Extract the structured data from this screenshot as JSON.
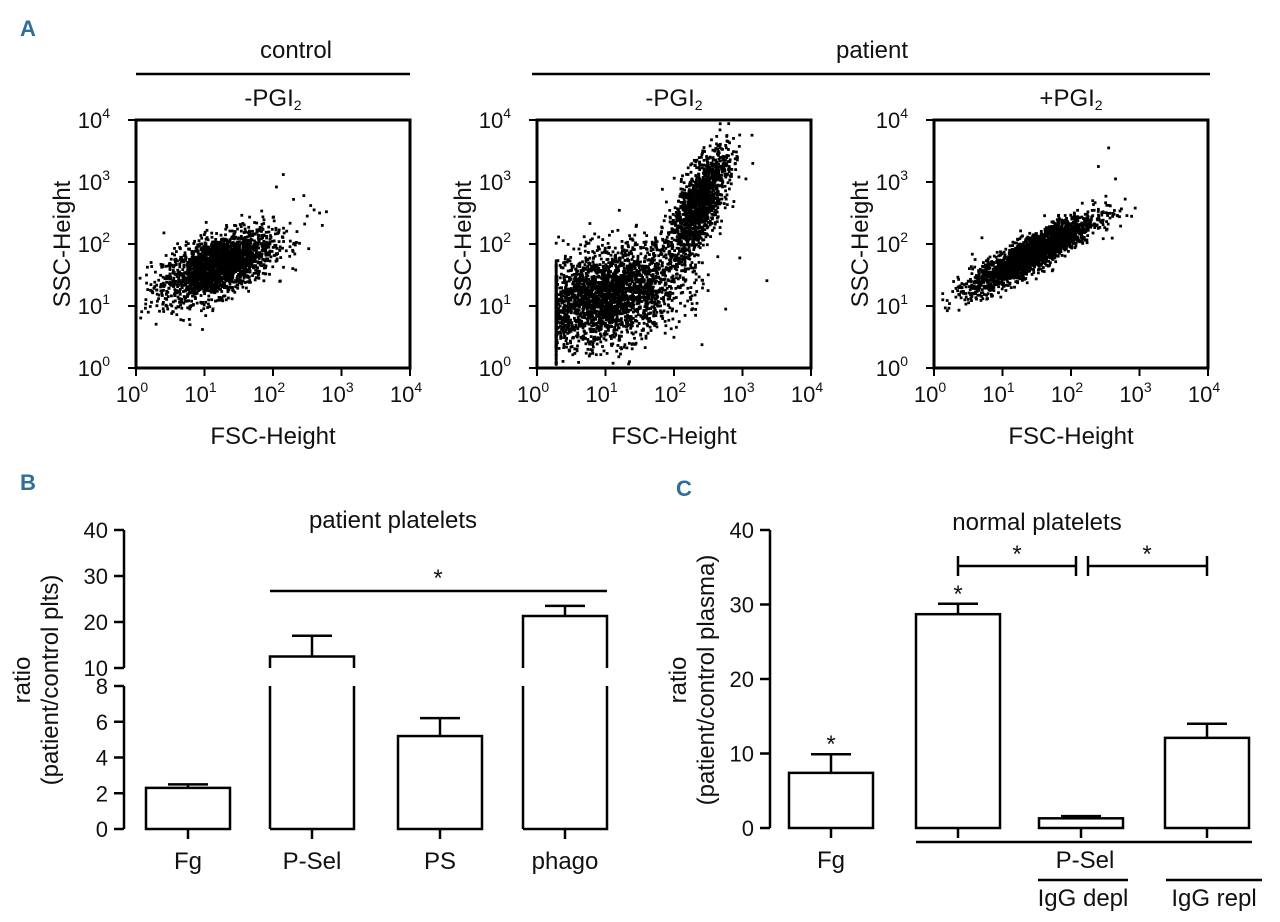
{
  "panel_letters": {
    "a": "A",
    "b": "B",
    "c": "C"
  },
  "panel_a": {
    "group_control": "control",
    "group_patient": "patient",
    "plots": [
      {
        "id": "control",
        "condition": "-PGI",
        "condition_sub": "2"
      },
      {
        "id": "patient-minus",
        "condition": "-PGI",
        "condition_sub": "2"
      },
      {
        "id": "patient-plus",
        "condition": "+PGI",
        "condition_sub": "2"
      }
    ],
    "xlabel": "FSC-Height",
    "ylabel": "SSC-Height",
    "tick_base": "10",
    "tick_exponents": [
      "0",
      "1",
      "2",
      "3",
      "4"
    ]
  },
  "chart_data": [
    {
      "type": "scatter",
      "title": "control -PGI2",
      "xlabel": "FSC-Height",
      "ylabel": "SSC-Height",
      "xscale": "log",
      "yscale": "log",
      "xlim": [
        1,
        10000
      ],
      "ylim": [
        1,
        10000
      ],
      "cluster": {
        "center_log": [
          1.2,
          1.65
        ],
        "spread_log": [
          0.4,
          0.28
        ],
        "corr": 0.55,
        "n": 2200
      },
      "outliers_log": [
        [
          2.05,
          2.92
        ],
        [
          2.15,
          3.12
        ],
        [
          2.3,
          2.72
        ],
        [
          2.45,
          2.78
        ],
        [
          2.55,
          2.62
        ],
        [
          2.6,
          2.55
        ],
        [
          2.68,
          2.5
        ],
        [
          2.72,
          2.3
        ],
        [
          2.78,
          2.52
        ],
        [
          2.35,
          2.2
        ],
        [
          2.5,
          2.45
        ]
      ]
    },
    {
      "type": "scatter",
      "title": "patient -PGI2",
      "xlabel": "FSC-Height",
      "ylabel": "SSC-Height",
      "xscale": "log",
      "yscale": "log",
      "xlim": [
        1,
        10000
      ],
      "ylim": [
        1,
        10000
      ],
      "clusters": [
        {
          "center_log": [
            1.0,
            1.15
          ],
          "spread_log": [
            0.55,
            0.4
          ],
          "corr": 0.35,
          "n": 2600
        },
        {
          "center_log": [
            2.35,
            2.6
          ],
          "spread_log": [
            0.22,
            0.45
          ],
          "corr": 0.7,
          "n": 1400
        }
      ],
      "outliers_log": [
        [
          2.75,
          3.35
        ],
        [
          2.9,
          3.2
        ],
        [
          3.05,
          3.05
        ],
        [
          2.6,
          3.5
        ],
        [
          2.85,
          3.45
        ],
        [
          3.15,
          3.3
        ]
      ]
    },
    {
      "type": "scatter",
      "title": "patient +PGI2",
      "xlabel": "FSC-Height",
      "ylabel": "SSC-Height",
      "xscale": "log",
      "yscale": "log",
      "xlim": [
        1,
        10000
      ],
      "ylim": [
        1,
        10000
      ],
      "cluster": {
        "center_log": [
          1.45,
          1.85
        ],
        "spread_log": [
          0.45,
          0.3
        ],
        "corr": 0.88,
        "n": 2300
      },
      "outliers_log": [
        [
          2.55,
          3.55
        ],
        [
          2.4,
          3.25
        ],
        [
          2.65,
          3.05
        ],
        [
          0.5,
          1.4
        ],
        [
          0.45,
          1.1
        ],
        [
          0.6,
          1.75
        ],
        [
          0.7,
          2.1
        ]
      ]
    },
    {
      "type": "bar",
      "title": "patient platelets",
      "ylabel": "ratio",
      "ylabel2": "(patient/control plts)",
      "categories": [
        "Fg",
        "P-Sel",
        "PS",
        "phago"
      ],
      "values": [
        2.3,
        12.5,
        5.2,
        21.3
      ],
      "errors": [
        0.2,
        4.5,
        1.0,
        2.2
      ],
      "y_axis_break": true,
      "lower_ticks": [
        0,
        2,
        4,
        6,
        8
      ],
      "upper_ticks": [
        10,
        20,
        30,
        40
      ],
      "significance": [
        {
          "from": "P-Sel",
          "to": "phago",
          "label": "*"
        }
      ]
    },
    {
      "type": "bar",
      "title": "normal platelets",
      "ylabel": "ratio",
      "ylabel2": "(patient/control plasma)",
      "categories": [
        "Fg",
        "P-Sel",
        "IgG depl",
        "IgG repl"
      ],
      "values": [
        7.4,
        28.7,
        1.3,
        12.1
      ],
      "errors": [
        2.5,
        1.4,
        0.3,
        1.9
      ],
      "ylim": [
        0,
        40
      ],
      "yticks": [
        0,
        10,
        20,
        30,
        40
      ],
      "bar_stars": [
        "*",
        "*",
        "",
        ""
      ],
      "significance": [
        {
          "from": "P-Sel",
          "to": "IgG depl",
          "label": "*"
        },
        {
          "from": "IgG depl",
          "to": "IgG repl",
          "label": "*"
        }
      ],
      "group_label": "P-Sel"
    }
  ]
}
